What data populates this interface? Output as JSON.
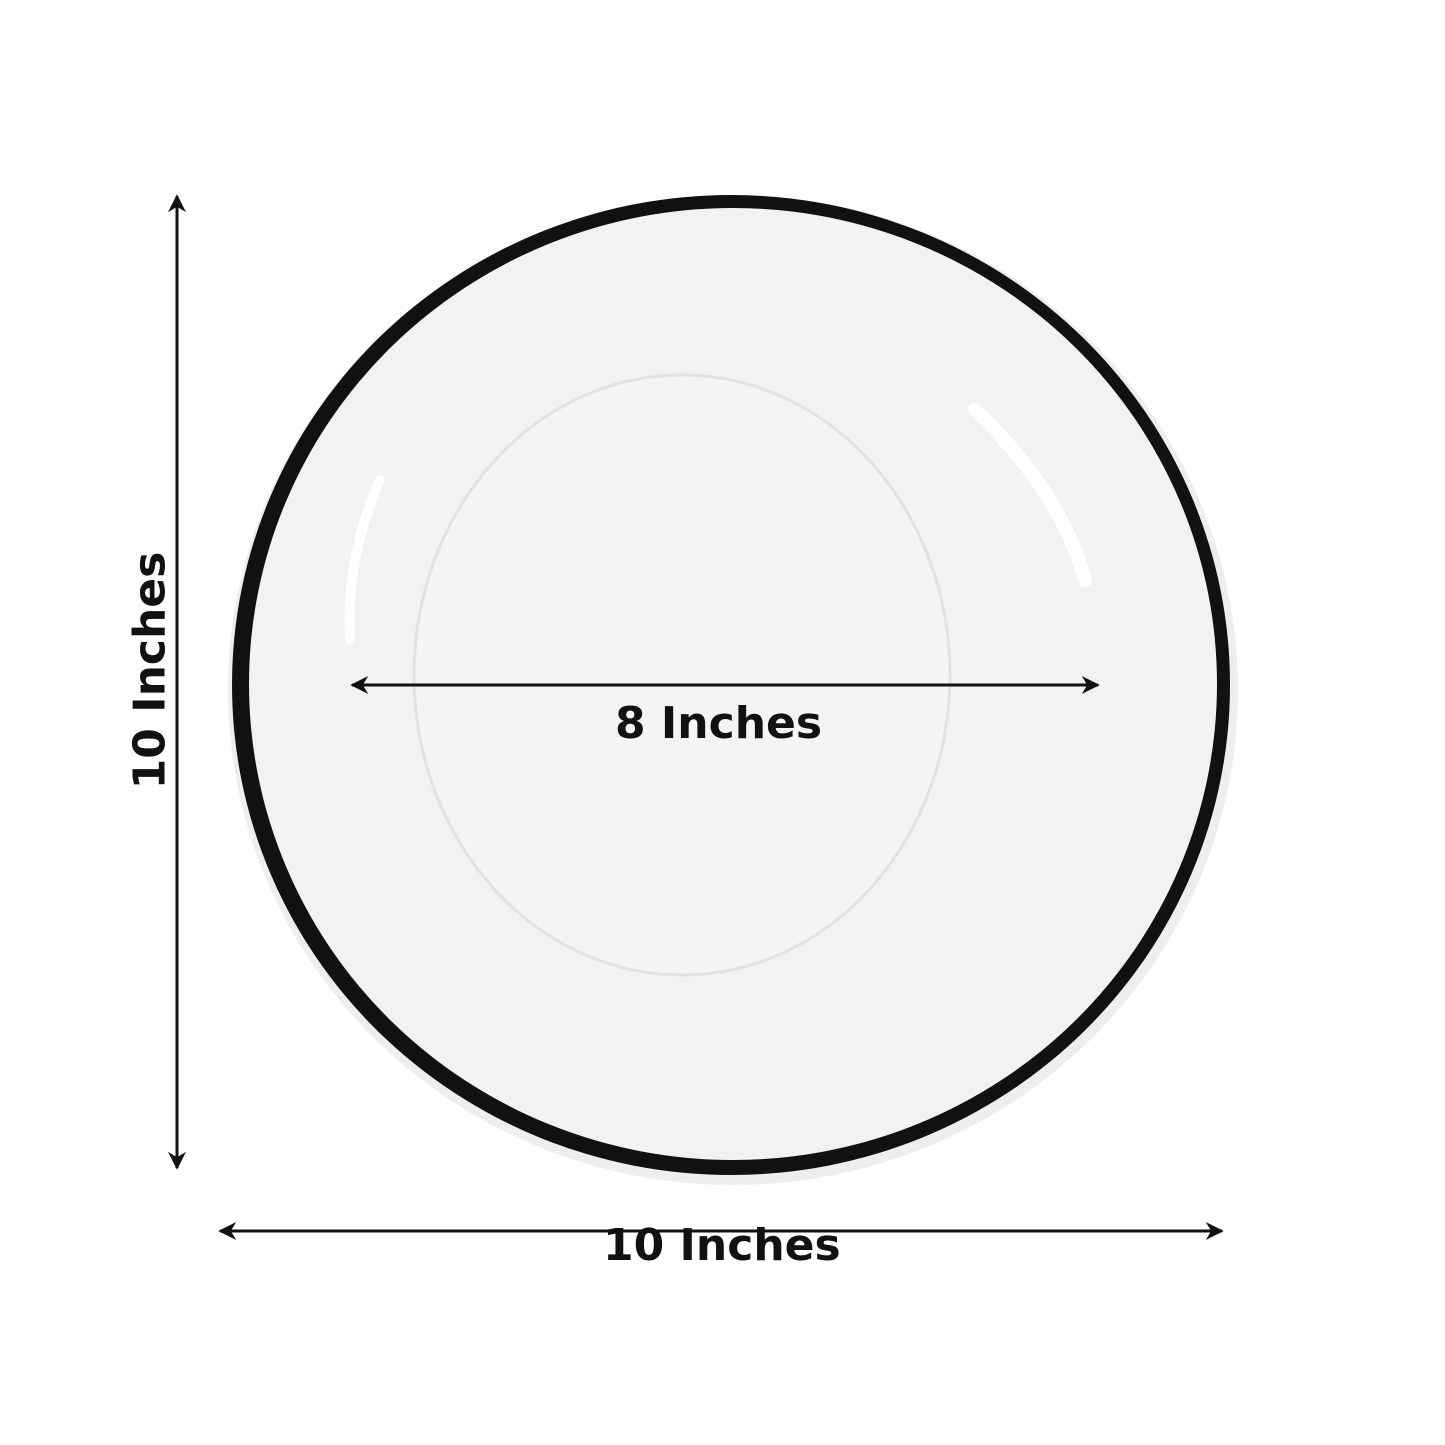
{
  "labels": {
    "inner_diameter": "8 Inches",
    "width": "10 Inches",
    "height": "10 Inches"
  },
  "colors": {
    "rim": "#111111",
    "plate": "#f3f3f1",
    "arrow": "#111111"
  }
}
